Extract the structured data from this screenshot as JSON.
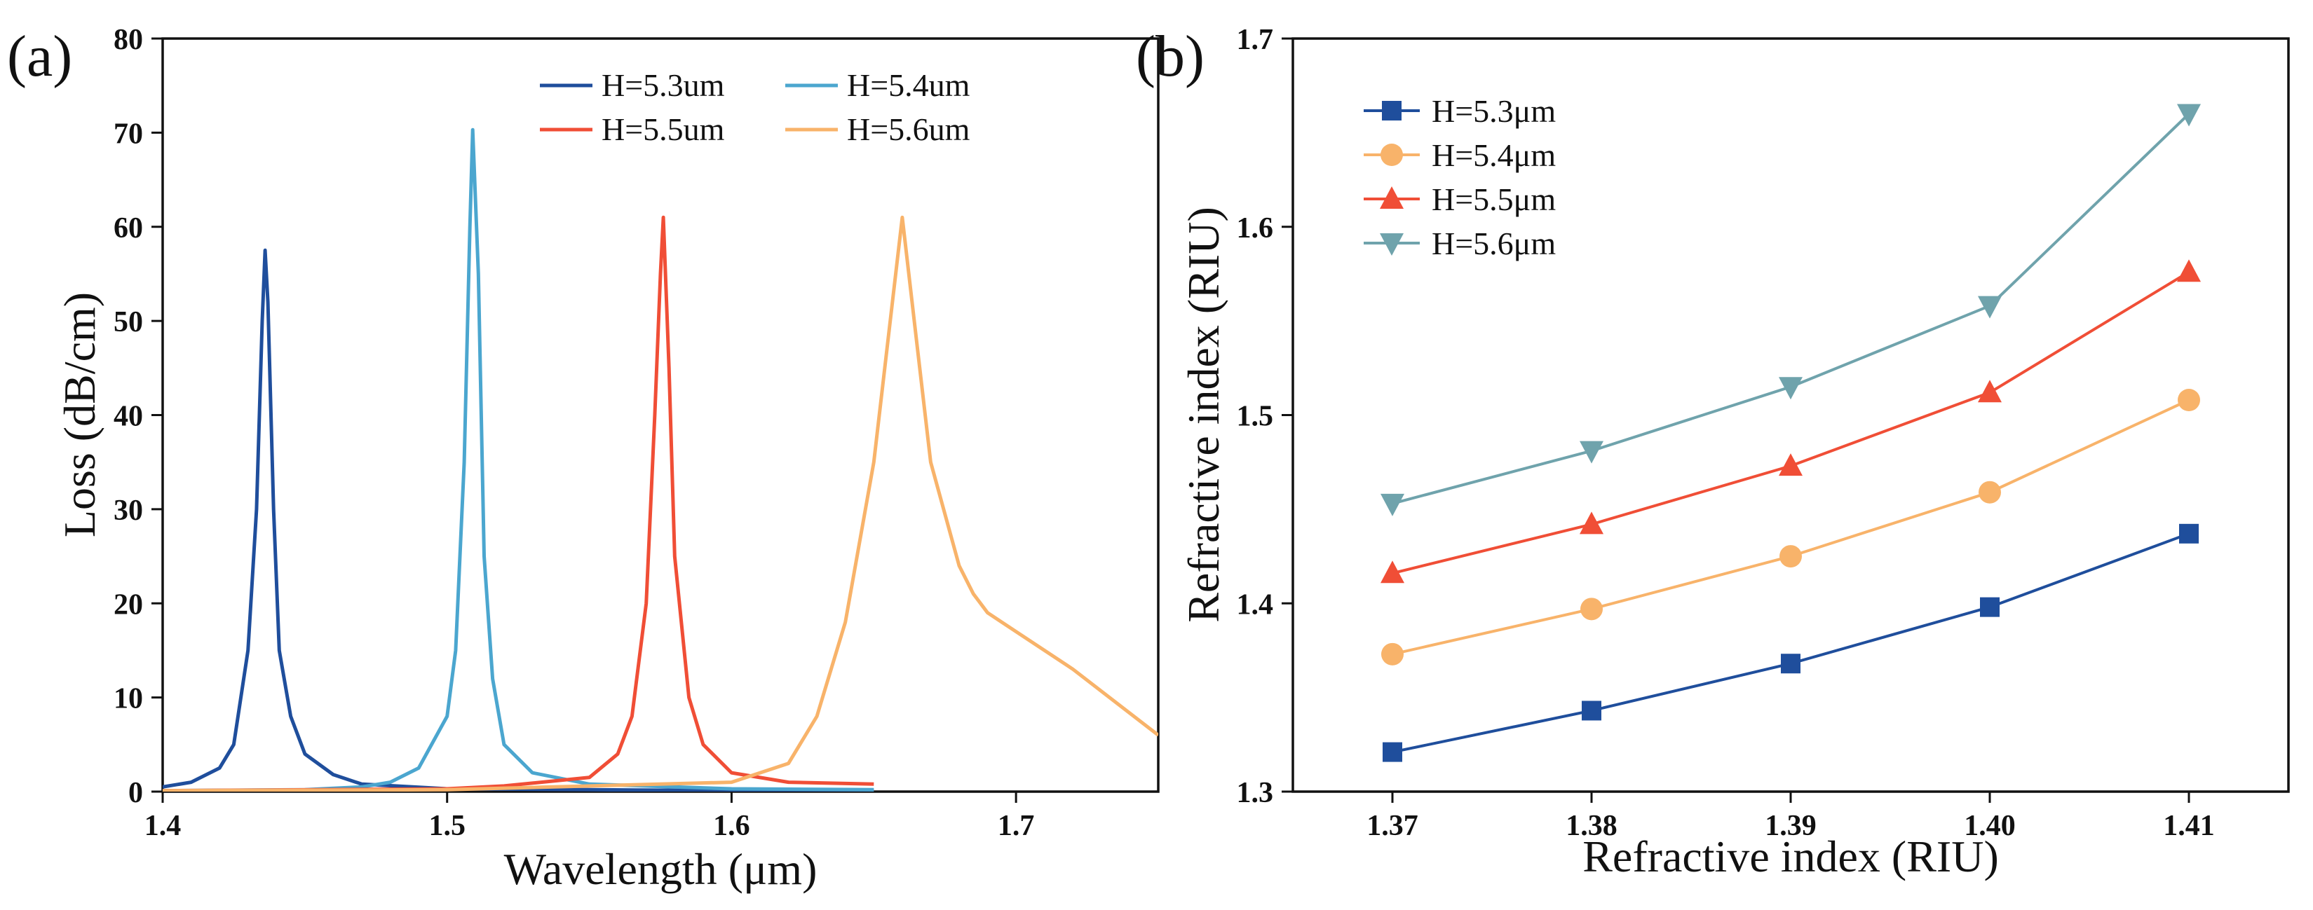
{
  "panels": {
    "a": {
      "label": "(a)"
    },
    "b": {
      "label": "(b)"
    }
  },
  "chart_data": [
    {
      "id": "a",
      "type": "line",
      "xlabel": "Wavelength (μm)",
      "ylabel": "Loss (dB/cm)",
      "xlim": [
        1.4,
        1.75
      ],
      "ylim": [
        0,
        80
      ],
      "xticks": [
        "1.4",
        "1.5",
        "1.6",
        "1.7"
      ],
      "xtick_values": [
        1.4,
        1.5,
        1.6,
        1.7
      ],
      "yticks": [
        "0",
        "10",
        "20",
        "30",
        "40",
        "50",
        "60",
        "70",
        "80"
      ],
      "ytick_values": [
        0,
        10,
        20,
        30,
        40,
        50,
        60,
        70,
        80
      ],
      "legend_position": "top-right",
      "series": [
        {
          "name": "H=5.3um",
          "color": "#1f4e9c",
          "x": [
            1.4,
            1.41,
            1.42,
            1.425,
            1.43,
            1.433,
            1.435,
            1.436,
            1.437,
            1.439,
            1.441,
            1.445,
            1.45,
            1.46,
            1.47,
            1.5,
            1.55,
            1.6,
            1.65
          ],
          "y": [
            0.5,
            1.0,
            2.5,
            5.0,
            15.0,
            30.0,
            50.0,
            57.5,
            52.0,
            30.0,
            15.0,
            8.0,
            4.0,
            1.8,
            0.8,
            0.3,
            0.2,
            0.1,
            0.1
          ]
        },
        {
          "name": "H=5.4um",
          "color": "#4ba6cf",
          "x": [
            1.4,
            1.45,
            1.47,
            1.48,
            1.49,
            1.5,
            1.503,
            1.506,
            1.508,
            1.509,
            1.511,
            1.513,
            1.516,
            1.52,
            1.53,
            1.55,
            1.6,
            1.65
          ],
          "y": [
            0.1,
            0.2,
            0.5,
            1.0,
            2.5,
            8.0,
            15.0,
            35.0,
            60.0,
            70.3,
            55.0,
            25.0,
            12.0,
            5.0,
            2.0,
            0.8,
            0.3,
            0.2
          ]
        },
        {
          "name": "H=5.5um",
          "color": "#f04e36",
          "x": [
            1.4,
            1.5,
            1.52,
            1.55,
            1.56,
            1.565,
            1.57,
            1.573,
            1.575,
            1.576,
            1.578,
            1.58,
            1.585,
            1.59,
            1.6,
            1.62,
            1.65
          ],
          "y": [
            0.1,
            0.3,
            0.6,
            1.5,
            4.0,
            8.0,
            20.0,
            40.0,
            55.0,
            61.0,
            45.0,
            25.0,
            10.0,
            5.0,
            2.0,
            1.0,
            0.8
          ]
        },
        {
          "name": "H=5.6um",
          "color": "#f8b36a",
          "x": [
            1.4,
            1.5,
            1.6,
            1.62,
            1.63,
            1.64,
            1.65,
            1.655,
            1.66,
            1.665,
            1.67,
            1.68,
            1.685,
            1.69,
            1.7,
            1.72,
            1.75
          ],
          "y": [
            0.1,
            0.2,
            1.0,
            3.0,
            8.0,
            18.0,
            35.0,
            48.0,
            61.0,
            48.0,
            35.0,
            24.0,
            21.0,
            19.0,
            17.0,
            13.0,
            6.0
          ]
        }
      ]
    },
    {
      "id": "b",
      "type": "line",
      "xlabel": "Refractive index (RIU)",
      "ylabel": "Refractive index (RIU)",
      "xlim": [
        1.365,
        1.415
      ],
      "ylim": [
        1.3,
        1.7
      ],
      "xticks": [
        "1.37",
        "1.38",
        "1.39",
        "1.40",
        "1.41"
      ],
      "xtick_values": [
        1.37,
        1.38,
        1.39,
        1.4,
        1.41
      ],
      "yticks": [
        "1.3",
        "1.4",
        "1.5",
        "1.6",
        "1.7"
      ],
      "ytick_values": [
        1.3,
        1.4,
        1.5,
        1.6,
        1.7
      ],
      "legend_position": "top-left",
      "x": [
        1.37,
        1.38,
        1.39,
        1.4,
        1.41
      ],
      "series": [
        {
          "name": "H=5.3μm",
          "color": "#1f4e9c",
          "marker": "square",
          "values": [
            1.321,
            1.343,
            1.368,
            1.398,
            1.437
          ]
        },
        {
          "name": "H=5.4μm",
          "color": "#f8b36a",
          "marker": "circle",
          "values": [
            1.373,
            1.397,
            1.425,
            1.459,
            1.508
          ]
        },
        {
          "name": "H=5.5μm",
          "color": "#f04e36",
          "marker": "triangle-up",
          "values": [
            1.416,
            1.442,
            1.473,
            1.512,
            1.576
          ]
        },
        {
          "name": "H=5.6μm",
          "color": "#6fa3ac",
          "marker": "triangle-down",
          "values": [
            1.453,
            1.481,
            1.515,
            1.558,
            1.66
          ]
        }
      ]
    }
  ]
}
